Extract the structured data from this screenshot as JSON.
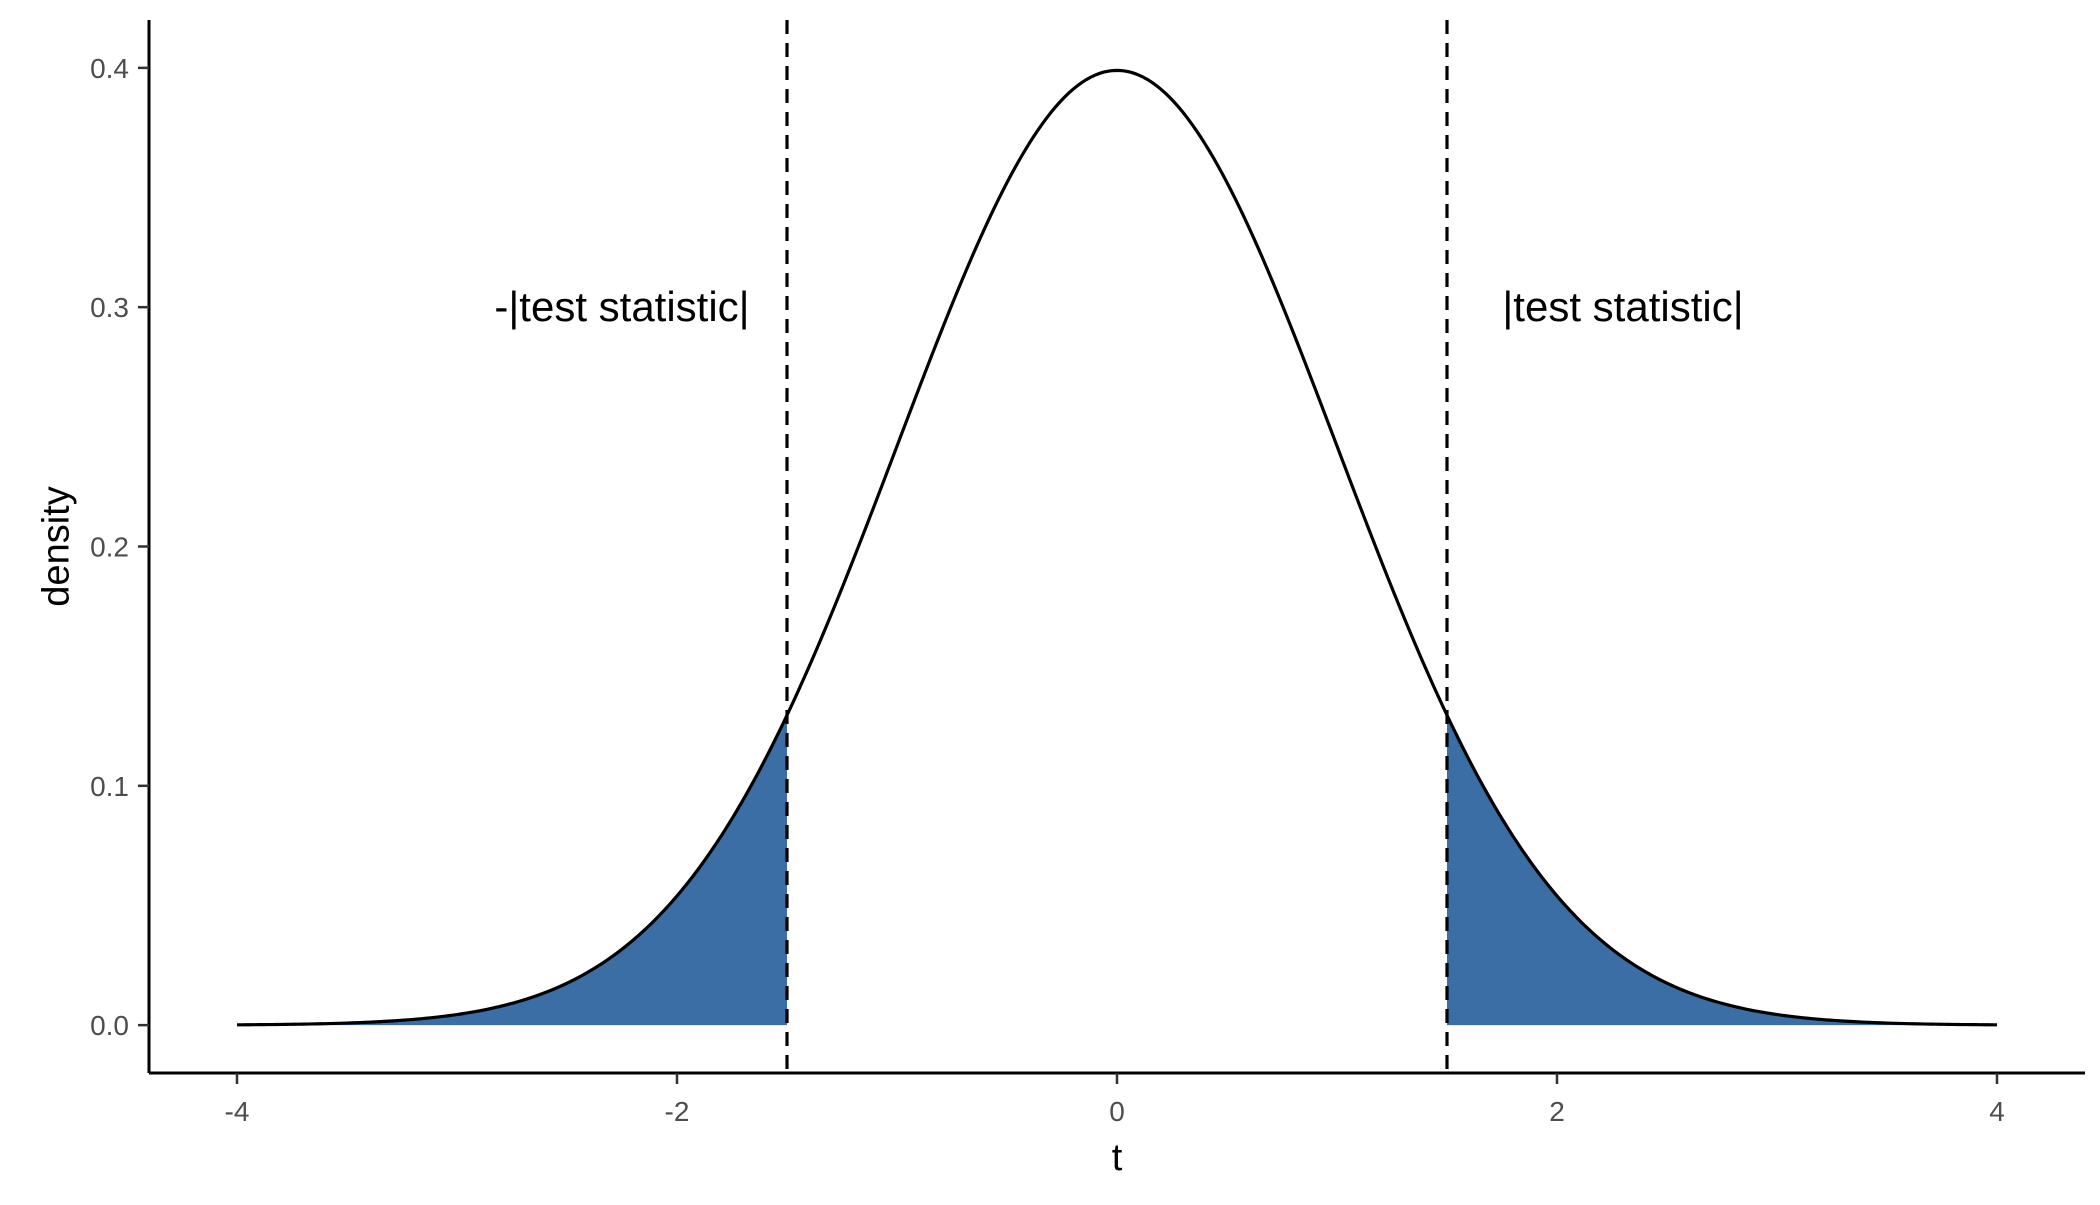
{
  "chart_data": {
    "type": "area",
    "title": "",
    "xlabel": "t",
    "ylabel": "density",
    "xlim": [
      -4.4,
      4.4
    ],
    "ylim": [
      -0.02,
      0.42
    ],
    "x_ticks": [
      -4,
      -2,
      0,
      2,
      4
    ],
    "x_tick_labels": [
      "-4",
      "-2",
      "0",
      "2",
      "4"
    ],
    "y_ticks": [
      0.0,
      0.1,
      0.2,
      0.3,
      0.4
    ],
    "y_tick_labels": [
      "0.0",
      "0.1",
      "0.2",
      "0.3",
      "0.4"
    ],
    "grid": false,
    "legend": "none",
    "series": [
      {
        "kind": "line",
        "x": [
          -4.0,
          -3.5,
          -3.0,
          -2.5,
          -2.0,
          -1.5,
          -1.0,
          -0.5,
          0.0,
          0.5,
          1.0,
          1.5,
          2.0,
          2.5,
          3.0,
          3.5,
          4.0
        ],
        "values": [
          0.0001,
          0.0009,
          0.0044,
          0.0175,
          0.054,
          0.1295,
          0.242,
          0.3521,
          0.3989,
          0.3521,
          0.242,
          0.1295,
          0.054,
          0.0175,
          0.0044,
          0.0009,
          0.0001
        ]
      }
    ],
    "shaded_regions": [
      {
        "from": -4.0,
        "to": -1.5,
        "color": "#3a6ea5"
      },
      {
        "from": 1.5,
        "to": 4.0,
        "color": "#3a6ea5"
      }
    ],
    "vlines": [
      {
        "x": -1.5,
        "style": "dashed"
      },
      {
        "x": 1.5,
        "style": "dashed"
      }
    ],
    "annotations": [
      {
        "x": -2.25,
        "y": 0.3,
        "text": "-|test statistic|"
      },
      {
        "x": 2.3,
        "y": 0.3,
        "text": "|test statistic|"
      }
    ],
    "colors": {
      "curve": "#000000",
      "fill": "#3a6ea5",
      "axis": "#000000",
      "tick_label": "#4d4d4d"
    }
  }
}
